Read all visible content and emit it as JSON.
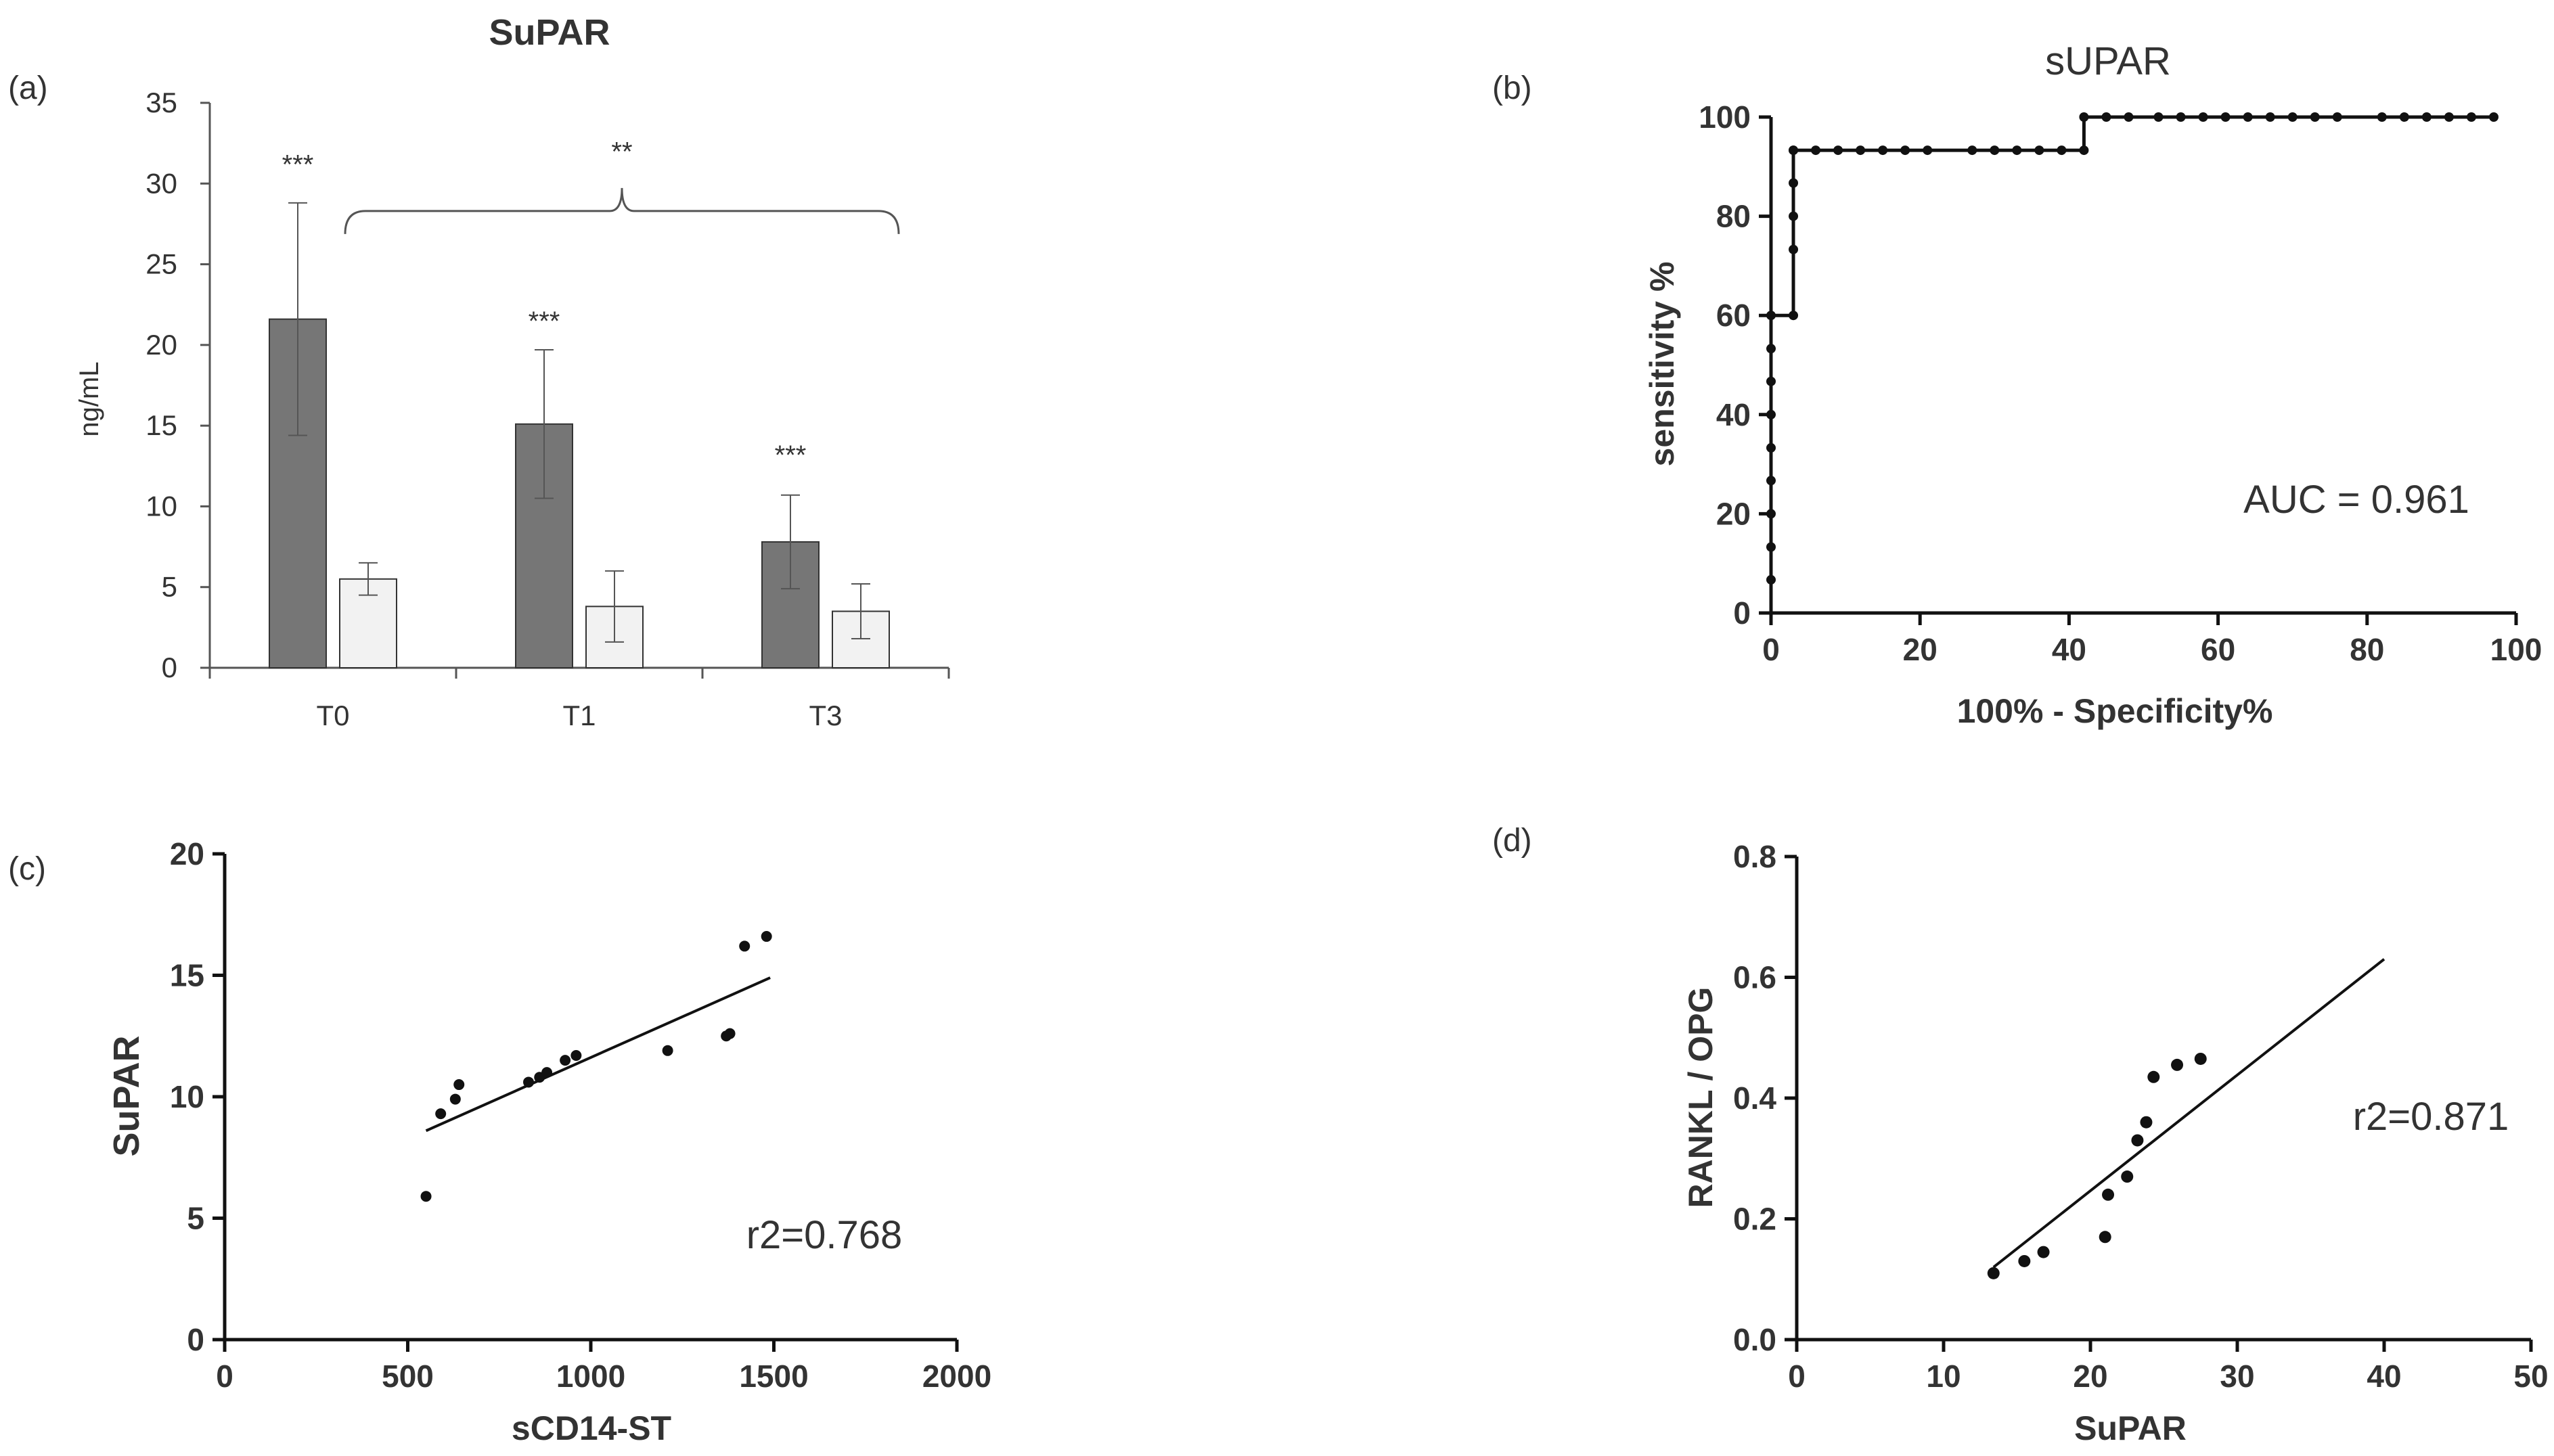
{
  "chart_data": [
    {
      "panel": "(a)",
      "type": "bar",
      "title": "SuPAR",
      "ylabel": "ng/mL",
      "xlabel": "",
      "ylim": [
        0,
        35
      ],
      "yticks": [
        "0",
        "5",
        "10",
        "15",
        "20",
        "25",
        "30",
        "35"
      ],
      "categories": [
        "T0",
        "T1",
        "T3"
      ],
      "series": [
        {
          "name": "dark",
          "color": "#767676",
          "values": [
            21.6,
            15.1,
            7.8
          ],
          "errors": [
            7.2,
            4.6,
            2.9
          ]
        },
        {
          "name": "light",
          "color": "#f2f2f2",
          "values": [
            5.5,
            3.8,
            3.5
          ],
          "errors": [
            1.0,
            2.2,
            1.7
          ]
        }
      ],
      "annotations": [
        {
          "text": "***",
          "category": 0,
          "y": 31.2
        },
        {
          "text": "***",
          "category": 1,
          "y": 21.5
        },
        {
          "text": "***",
          "category": 2,
          "y": 13.2
        },
        {
          "text": "**",
          "y": 32.0,
          "bracket": [
            0,
            2
          ]
        }
      ]
    },
    {
      "panel": "(b)",
      "type": "line",
      "title": "sUPAR",
      "xlabel": "100% - Specificity%",
      "ylabel": "sensitivity %",
      "xlim": [
        0,
        100
      ],
      "ylim": [
        0,
        100
      ],
      "xticks": [
        "0",
        "20",
        "40",
        "60",
        "80",
        "100"
      ],
      "yticks": [
        "0",
        "20",
        "40",
        "60",
        "80",
        "100"
      ],
      "annotation": "AUC = 0.961",
      "x": [
        0,
        0,
        0,
        0,
        0,
        0,
        0,
        0,
        0,
        3,
        3,
        3,
        3,
        3,
        3,
        6,
        9,
        12,
        15,
        18,
        21,
        27,
        30,
        33,
        36,
        39,
        42,
        42,
        45,
        48,
        52,
        55,
        58,
        61,
        64,
        67,
        70,
        73,
        76,
        82,
        85,
        88,
        91,
        94,
        97
      ],
      "y": [
        6.7,
        13.3,
        20,
        26.7,
        33.3,
        40,
        46.7,
        53.3,
        60,
        60,
        73.3,
        80,
        86.7,
        93.3,
        93.3,
        93.3,
        93.3,
        93.3,
        93.3,
        93.3,
        93.3,
        93.3,
        93.3,
        93.3,
        93.3,
        93.3,
        93.3,
        100,
        100,
        100,
        100,
        100,
        100,
        100,
        100,
        100,
        100,
        100,
        100,
        100,
        100,
        100,
        100,
        100,
        100
      ]
    },
    {
      "panel": "(c)",
      "type": "scatter",
      "title": "",
      "xlabel": "sCD14-ST",
      "ylabel": "SuPAR",
      "xlim": [
        0,
        2000
      ],
      "ylim": [
        0,
        20
      ],
      "xticks": [
        "0",
        "500",
        "1000",
        "1500",
        "2000"
      ],
      "yticks": [
        "0",
        "5",
        "10",
        "15",
        "20"
      ],
      "annotation": "r2=0.768",
      "x": [
        550,
        590,
        630,
        640,
        830,
        860,
        880,
        930,
        960,
        1210,
        1370,
        1380,
        1420,
        1480
      ],
      "y": [
        5.9,
        9.3,
        9.9,
        10.5,
        10.6,
        10.8,
        11.0,
        11.5,
        11.7,
        11.9,
        12.5,
        12.6,
        16.2,
        16.6
      ],
      "fit": {
        "x": [
          550,
          1490
        ],
        "y": [
          8.6,
          14.9
        ]
      }
    },
    {
      "panel": "(d)",
      "type": "scatter",
      "title": "",
      "xlabel": "SuPAR",
      "ylabel": "RANKL / OPG",
      "xlim": [
        0,
        50
      ],
      "ylim": [
        0,
        0.8
      ],
      "xticks": [
        "0",
        "10",
        "20",
        "30",
        "40",
        "50"
      ],
      "yticks": [
        "0.0",
        "0.2",
        "0.4",
        "0.6",
        "0.8"
      ],
      "annotation": "r2=0.871",
      "x": [
        13.4,
        15.5,
        16.8,
        21.0,
        21.2,
        22.5,
        23.2,
        23.8,
        24.3,
        25.9,
        27.5
      ],
      "y": [
        0.11,
        0.13,
        0.145,
        0.17,
        0.24,
        0.27,
        0.33,
        0.36,
        0.435,
        0.455,
        0.465
      ],
      "fit": {
        "x": [
          13.4,
          40.0
        ],
        "y": [
          0.12,
          0.63
        ]
      }
    }
  ]
}
